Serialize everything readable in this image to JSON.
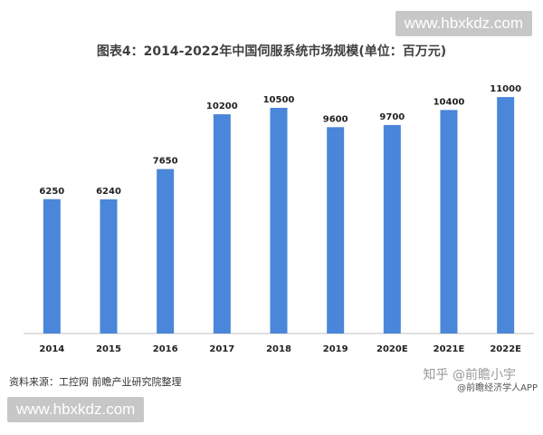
{
  "watermark_top": "www.hbxkdz.com",
  "watermark_bottom": "www.hbxkdz.com",
  "chart_data": {
    "type": "bar",
    "title": "图表4：2014-2022年中国伺服系统市场规模(单位：百万元)",
    "categories": [
      "2014",
      "2015",
      "2016",
      "2017",
      "2018",
      "2019",
      "2020E",
      "2021E",
      "2022E"
    ],
    "values": [
      6250,
      6240,
      7650,
      10200,
      10500,
      9600,
      9700,
      10400,
      11000
    ],
    "ylim": [
      0,
      11300
    ],
    "bar_color": "#4a86d9",
    "axis_color": "#bfbfbf"
  },
  "footer": {
    "source": "资料来源：工控网 前瞻产业研究院整理",
    "zhihu": "知乎 @前瞻小宇",
    "app_credit": "@前瞻经济学人APP"
  }
}
